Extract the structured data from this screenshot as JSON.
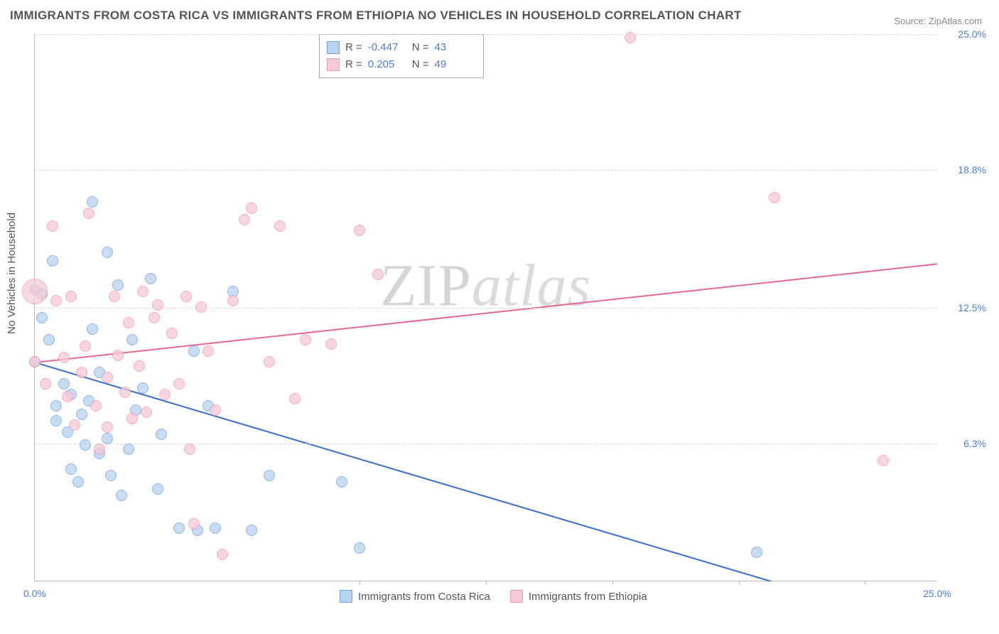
{
  "title": "IMMIGRANTS FROM COSTA RICA VS IMMIGRANTS FROM ETHIOPIA NO VEHICLES IN HOUSEHOLD CORRELATION CHART",
  "source": "Source: ZipAtlas.com",
  "ylabel": "No Vehicles in Household",
  "watermark": {
    "a": "ZIP",
    "b": "atlas"
  },
  "chart": {
    "type": "scatter",
    "xlim": [
      0,
      25
    ],
    "ylim": [
      0,
      25
    ],
    "xticks": [
      0,
      25
    ],
    "xtick_labels": [
      "0.0%",
      "25.0%"
    ],
    "xtick_minor_positions": [
      9,
      12.5,
      16,
      19.5,
      23
    ],
    "yticks": [
      6.3,
      12.5,
      18.8,
      25.0
    ],
    "ytick_labels": [
      "6.3%",
      "12.5%",
      "18.8%",
      "25.0%"
    ],
    "background_color": "#ffffff",
    "grid_color": "#d5d5d5",
    "axis_color": "#bbbbbb",
    "label_color": "#4a7fd8",
    "marker_radius": 8,
    "marker_stroke_width": 1.5,
    "series": [
      {
        "name": "Immigrants from Costa Rica",
        "fill": "#b9d4f0",
        "stroke": "#6fa3e0",
        "line_color": "#3a6fd0",
        "R": "-0.447",
        "N": "43",
        "trend": {
          "x1": 0,
          "y1": 10.0,
          "x2": 20.4,
          "y2": 0.0
        },
        "points": [
          [
            0.0,
            10.0
          ],
          [
            0.0,
            13.3
          ],
          [
            0.2,
            13.1
          ],
          [
            0.2,
            12.0
          ],
          [
            0.4,
            11.0
          ],
          [
            0.5,
            14.6
          ],
          [
            0.6,
            8.0
          ],
          [
            0.6,
            7.3
          ],
          [
            0.8,
            9.0
          ],
          [
            0.9,
            6.8
          ],
          [
            1.0,
            8.5
          ],
          [
            1.0,
            5.1
          ],
          [
            1.2,
            4.5
          ],
          [
            1.3,
            7.6
          ],
          [
            1.4,
            6.2
          ],
          [
            1.5,
            8.2
          ],
          [
            1.6,
            11.5
          ],
          [
            1.6,
            17.3
          ],
          [
            1.8,
            9.5
          ],
          [
            1.8,
            5.8
          ],
          [
            2.0,
            15.0
          ],
          [
            2.0,
            6.5
          ],
          [
            2.1,
            4.8
          ],
          [
            2.3,
            13.5
          ],
          [
            2.4,
            3.9
          ],
          [
            2.6,
            6.0
          ],
          [
            2.7,
            11.0
          ],
          [
            2.8,
            7.8
          ],
          [
            3.0,
            8.8
          ],
          [
            3.2,
            13.8
          ],
          [
            3.4,
            4.2
          ],
          [
            3.5,
            6.7
          ],
          [
            4.0,
            2.4
          ],
          [
            4.4,
            10.5
          ],
          [
            4.5,
            2.3
          ],
          [
            4.8,
            8.0
          ],
          [
            5.0,
            2.4
          ],
          [
            5.5,
            13.2
          ],
          [
            6.0,
            2.3
          ],
          [
            6.5,
            4.8
          ],
          [
            8.5,
            4.5
          ],
          [
            9.0,
            1.5
          ],
          [
            20.0,
            1.3
          ]
        ]
      },
      {
        "name": "Immigrants from Ethiopia",
        "fill": "#f6cbd7",
        "stroke": "#ee9ab3",
        "line_color": "#e46a8f",
        "R": "0.205",
        "N": "49",
        "trend": {
          "x1": 0,
          "y1": 10.0,
          "x2": 25,
          "y2": 14.5
        },
        "points": [
          [
            0.0,
            10.0
          ],
          [
            0.3,
            9.0
          ],
          [
            0.5,
            16.2
          ],
          [
            0.6,
            12.8
          ],
          [
            0.8,
            10.2
          ],
          [
            0.9,
            8.4
          ],
          [
            1.0,
            13.0
          ],
          [
            1.1,
            7.1
          ],
          [
            1.3,
            9.5
          ],
          [
            1.4,
            10.7
          ],
          [
            1.5,
            16.8
          ],
          [
            1.7,
            8.0
          ],
          [
            1.8,
            6.0
          ],
          [
            2.0,
            7.0
          ],
          [
            2.0,
            9.3
          ],
          [
            2.2,
            13.0
          ],
          [
            2.3,
            10.3
          ],
          [
            2.5,
            8.6
          ],
          [
            2.6,
            11.8
          ],
          [
            2.7,
            7.4
          ],
          [
            2.9,
            9.8
          ],
          [
            3.0,
            13.2
          ],
          [
            3.1,
            7.7
          ],
          [
            3.3,
            12.0
          ],
          [
            3.4,
            12.6
          ],
          [
            3.6,
            8.5
          ],
          [
            3.8,
            11.3
          ],
          [
            4.0,
            9.0
          ],
          [
            4.2,
            13.0
          ],
          [
            4.3,
            6.0
          ],
          [
            4.4,
            2.6
          ],
          [
            4.6,
            12.5
          ],
          [
            4.8,
            10.5
          ],
          [
            5.0,
            7.8
          ],
          [
            5.2,
            1.2
          ],
          [
            5.5,
            12.8
          ],
          [
            5.8,
            16.5
          ],
          [
            6.0,
            17.0
          ],
          [
            6.5,
            10.0
          ],
          [
            6.8,
            16.2
          ],
          [
            7.2,
            8.3
          ],
          [
            7.5,
            11.0
          ],
          [
            8.2,
            10.8
          ],
          [
            9.0,
            16.0
          ],
          [
            9.5,
            14.0
          ],
          [
            16.5,
            24.8
          ],
          [
            20.5,
            17.5
          ],
          [
            23.5,
            5.5
          ]
        ],
        "big_points": [
          [
            0.0,
            13.2,
            18
          ]
        ]
      }
    ]
  },
  "stats_box": {
    "rows": [
      {
        "swatch_fill": "#b9d4f0",
        "swatch_stroke": "#6fa3e0",
        "r_label": "R =",
        "r": "-0.447",
        "n_label": "N =",
        "n": "43"
      },
      {
        "swatch_fill": "#f6cbd7",
        "swatch_stroke": "#ee9ab3",
        "r_label": "R =",
        "r": "0.205",
        "n_label": "N =",
        "n": "49"
      }
    ]
  },
  "bottom_legend": [
    {
      "swatch_fill": "#b9d4f0",
      "swatch_stroke": "#6fa3e0",
      "label": "Immigrants from Costa Rica"
    },
    {
      "swatch_fill": "#f6cbd7",
      "swatch_stroke": "#ee9ab3",
      "label": "Immigrants from Ethiopia"
    }
  ]
}
